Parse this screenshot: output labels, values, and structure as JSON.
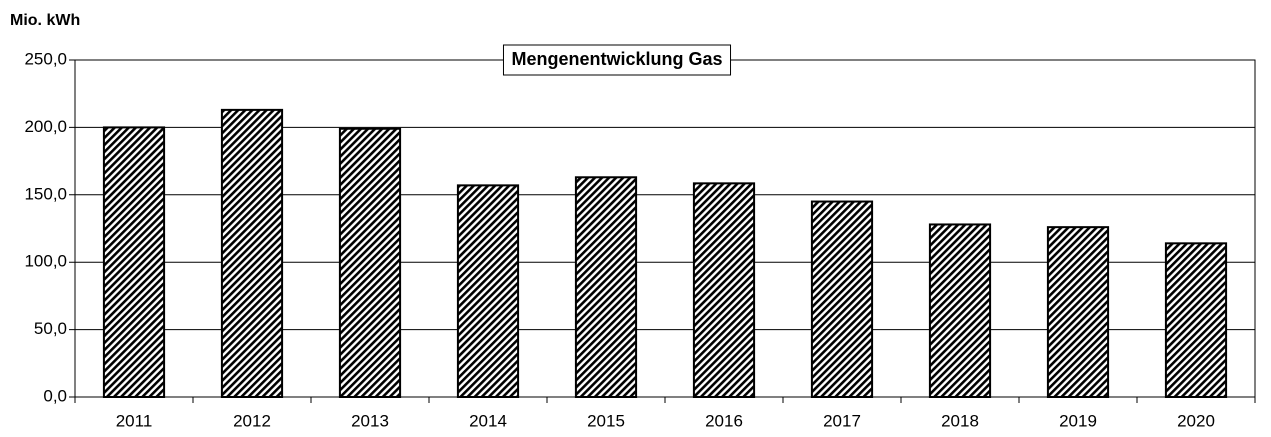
{
  "chart_data": {
    "type": "bar",
    "title": "Mengenentwicklung Gas",
    "y_label": "Mio.  kWh",
    "categories": [
      "2011",
      "2012",
      "2013",
      "2014",
      "2015",
      "2016",
      "2017",
      "2018",
      "2019",
      "2020"
    ],
    "values": [
      200,
      213,
      199,
      157,
      163,
      158.5,
      145,
      128,
      126,
      114
    ],
    "color": "#000000",
    "ylim": [
      0,
      250
    ],
    "yticks": [
      {
        "value": 0,
        "label": "0,0"
      },
      {
        "value": 50,
        "label": "50,0"
      },
      {
        "value": 100,
        "label": "100,0"
      },
      {
        "value": 150,
        "label": "150,0"
      },
      {
        "value": 200,
        "label": "200,0"
      },
      {
        "value": 250,
        "label": "250,0"
      }
    ],
    "grid": true
  }
}
